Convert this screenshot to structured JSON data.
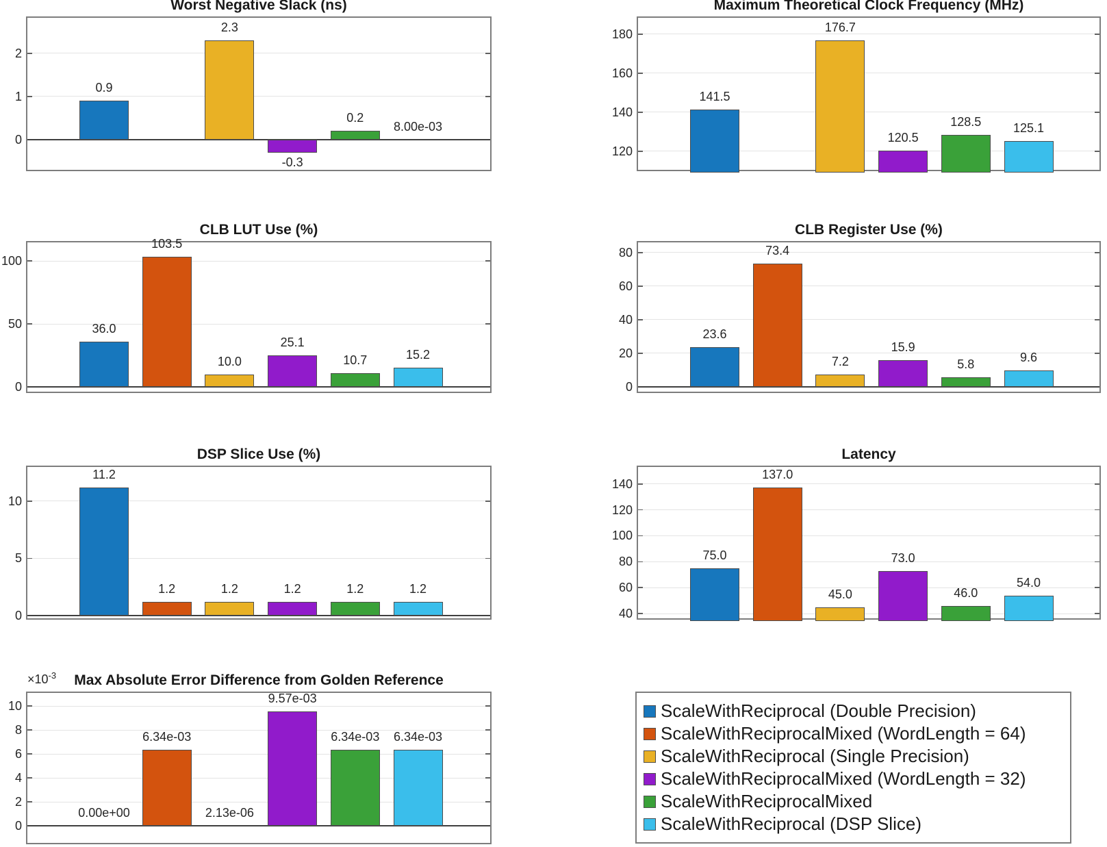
{
  "figure": {
    "background": "#FFFFFF"
  },
  "style": {
    "bar_edge": "#4D4D4D",
    "grid_line": "#E4E4E4",
    "axis_box": "#7D7D7D",
    "baseline": "#3F3F3F",
    "tick": "#606060",
    "text": "#262626"
  },
  "series": [
    {
      "name": "ScaleWithReciprocal (Double Precision)",
      "color": "#1777BD"
    },
    {
      "name": "ScaleWithReciprocalMixed (WordLength = 64)",
      "color": "#D3530E"
    },
    {
      "name": "ScaleWithReciprocal (Single Precision)",
      "color": "#E9B125"
    },
    {
      "name": "ScaleWithReciprocalMixed (WordLength = 32)",
      "color": "#911BCB"
    },
    {
      "name": "ScaleWithReciprocalMixed",
      "color": "#3AA139"
    },
    {
      "name": "ScaleWithReciprocal (DSP Slice)",
      "color": "#3ABEEB"
    }
  ],
  "chart_data": [
    {
      "type": "bar",
      "title": "Worst Negative Slack (ns)",
      "values": [
        0.9,
        null,
        2.3,
        -0.3,
        0.2,
        0.008
      ],
      "bar_labels": [
        "0.9",
        null,
        "2.3",
        "-0.3",
        "0.2",
        "8.00e-03"
      ],
      "yticks": [
        0,
        1,
        2
      ],
      "ytick_labels": [
        "0",
        "1",
        "2"
      ],
      "ylim": [
        -0.762,
        2.825
      ],
      "baseline": 0,
      "grid": "horizontal"
    },
    {
      "type": "bar",
      "title": "Maximum Theoretical Clock Frequency (MHz)",
      "values": [
        141.5,
        null,
        176.7,
        120.5,
        128.5,
        125.1
      ],
      "bar_labels": [
        "141.5",
        null,
        "176.7",
        "120.5",
        "128.5",
        "125.1"
      ],
      "yticks": [
        120,
        140,
        160,
        180
      ],
      "ytick_labels": [
        "120",
        "140",
        "160",
        "180"
      ],
      "ylim": [
        109.1,
        188.4
      ],
      "grid": "horizontal"
    },
    {
      "type": "bar",
      "title": "CLB LUT Use (%)",
      "values": [
        36.0,
        103.5,
        10.0,
        25.1,
        10.7,
        15.2
      ],
      "bar_labels": [
        "36.0",
        "103.5",
        "10.0",
        "25.1",
        "10.7",
        "15.2"
      ],
      "yticks": [
        0,
        50,
        100
      ],
      "ytick_labels": [
        "0",
        "50",
        "100"
      ],
      "ylim": [
        -5.98,
        114.7
      ],
      "baseline": 0,
      "grid": "horizontal"
    },
    {
      "type": "bar",
      "title": "CLB Register Use (%)",
      "values": [
        23.6,
        73.4,
        7.2,
        15.9,
        5.8,
        9.6
      ],
      "bar_labels": [
        "23.6",
        "73.4",
        "7.2",
        "15.9",
        "5.8",
        "9.6"
      ],
      "yticks": [
        0,
        20,
        40,
        60,
        80
      ],
      "ytick_labels": [
        "0",
        "20",
        "40",
        "60",
        "80"
      ],
      "ylim": [
        -4.49,
        86.1
      ],
      "baseline": 0,
      "grid": "horizontal"
    },
    {
      "type": "bar",
      "title": "DSP Slice Use (%)",
      "values": [
        11.2,
        1.2,
        1.2,
        1.2,
        1.2,
        1.2
      ],
      "bar_labels": [
        "11.2",
        "1.2",
        "1.2",
        "1.2",
        "1.2",
        "1.2"
      ],
      "yticks": [
        0,
        5,
        10
      ],
      "ytick_labels": [
        "0",
        "5",
        "10"
      ],
      "ylim": [
        -0.479,
        12.99
      ],
      "baseline": 0,
      "grid": "horizontal"
    },
    {
      "type": "bar",
      "title": "Latency",
      "values": [
        75.0,
        137.0,
        45.0,
        73.0,
        46.0,
        54.0
      ],
      "bar_labels": [
        "75.0",
        "137.0",
        "45.0",
        "73.0",
        "46.0",
        "54.0"
      ],
      "yticks": [
        40,
        60,
        80,
        100,
        120,
        140
      ],
      "ytick_labels": [
        "40",
        "60",
        "80",
        "100",
        "120",
        "140"
      ],
      "ylim": [
        34.2,
        153.1
      ],
      "grid": "horizontal"
    },
    {
      "type": "bar",
      "title": "Max Absolute Error Difference from Golden Reference",
      "scale_label": {
        "base": "×10",
        "exp": "-3"
      },
      "value_scale": "1e-3",
      "values": [
        0,
        6.34,
        0.00213,
        9.57,
        6.34,
        6.34
      ],
      "bar_labels": [
        "0.00e+00",
        "6.34e-03",
        "2.13e-06",
        "9.57e-03",
        "6.34e-03",
        "6.34e-03"
      ],
      "yticks": [
        0,
        2,
        4,
        6,
        8,
        10
      ],
      "ytick_labels": [
        "0",
        "2",
        "4",
        "6",
        "8",
        "10"
      ],
      "ylim": [
        -1.657,
        11.09
      ],
      "baseline": 0,
      "grid": "horizontal"
    }
  ]
}
